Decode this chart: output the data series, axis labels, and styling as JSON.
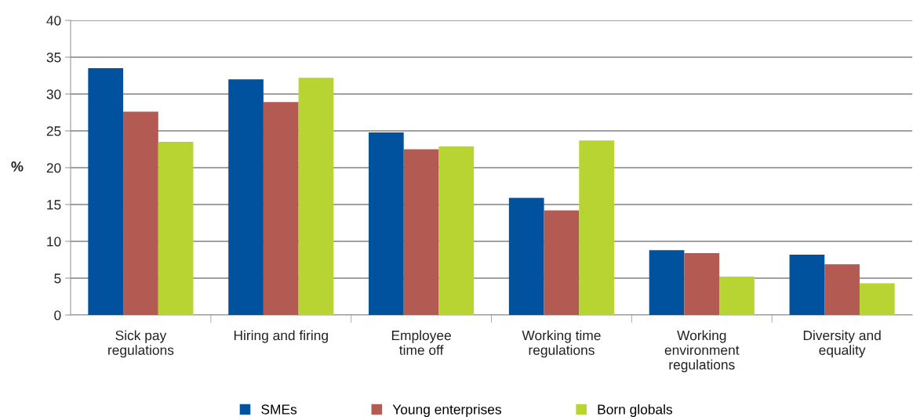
{
  "chart_data": {
    "type": "bar",
    "ylabel": "%",
    "categories": [
      "Sick pay\nregulations",
      "Hiring and firing",
      "Employee\ntime off",
      "Working time\nregulations",
      "Working\nenvironment\nregulations",
      "Diversity and\nequality"
    ],
    "series": [
      {
        "name": "SMEs",
        "color": "#00529f",
        "values": [
          33.5,
          32.0,
          24.8,
          15.9,
          8.8,
          8.2
        ]
      },
      {
        "name": "Young enterprises",
        "color": "#b35a52",
        "values": [
          27.6,
          28.9,
          22.5,
          14.2,
          8.4,
          6.9
        ]
      },
      {
        "name": "Born globals",
        "color": "#b8d432",
        "values": [
          23.5,
          32.2,
          22.9,
          23.7,
          5.2,
          4.3
        ]
      }
    ],
    "ylim": [
      0,
      40
    ],
    "yticks": [
      0,
      5,
      10,
      15,
      20,
      25,
      30,
      35,
      40
    ],
    "grid": "y",
    "legend": "bottom"
  }
}
